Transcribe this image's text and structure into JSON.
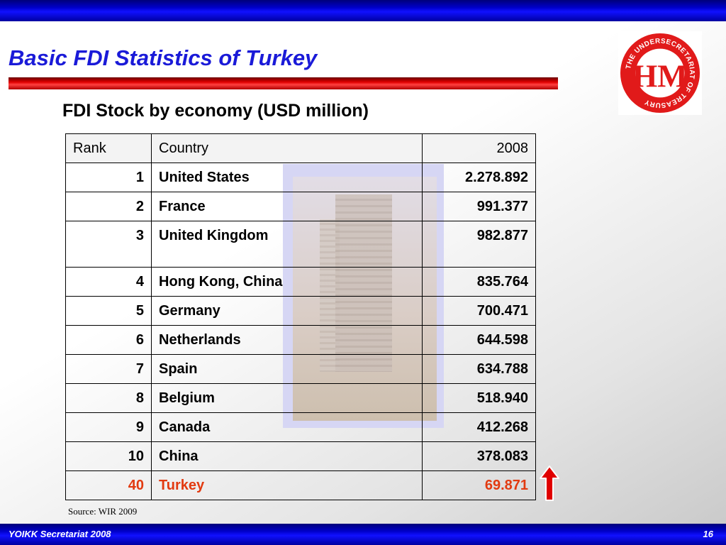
{
  "slide": {
    "title": "Basic FDI Statistics of Turkey",
    "subtitle": "FDI Stock by economy (USD million)",
    "source": "Source: WIR 2009",
    "footer_left": "YOIKK Secretariat 2008",
    "page_number": "16",
    "logo_text": "THE UNDERSECRETARIAT OF TREASURY",
    "logo_monogram": "HM"
  },
  "colors": {
    "title": "#1a1ad8",
    "bars": "#0000c8",
    "title_rule": "#e00000",
    "highlight": "#e23a10",
    "arrow": "#e00000"
  },
  "table": {
    "headers": {
      "rank": "Rank",
      "country": "Country",
      "value": "2008"
    },
    "rows": [
      {
        "rank": "1",
        "country": "United States",
        "value": "2.278.892"
      },
      {
        "rank": "2",
        "country": "France",
        "value": "991.377"
      },
      {
        "rank": "3",
        "country": "United Kingdom",
        "value": "982.877"
      },
      {
        "rank": "4",
        "country": "Hong Kong, China",
        "value": "835.764"
      },
      {
        "rank": "5",
        "country": "Germany",
        "value": "700.471"
      },
      {
        "rank": "6",
        "country": "Netherlands",
        "value": "644.598"
      },
      {
        "rank": "7",
        "country": "Spain",
        "value": "634.788"
      },
      {
        "rank": "8",
        "country": "Belgium",
        "value": "518.940"
      },
      {
        "rank": "9",
        "country": "Canada",
        "value": "412.268"
      },
      {
        "rank": "10",
        "country": "China",
        "value": "378.083"
      },
      {
        "rank": "40",
        "country": "Turkey",
        "value": "69.871"
      }
    ],
    "highlight_row": 10
  },
  "icons": {
    "arrow": "up-arrow-icon",
    "logo": "treasury-logo"
  }
}
